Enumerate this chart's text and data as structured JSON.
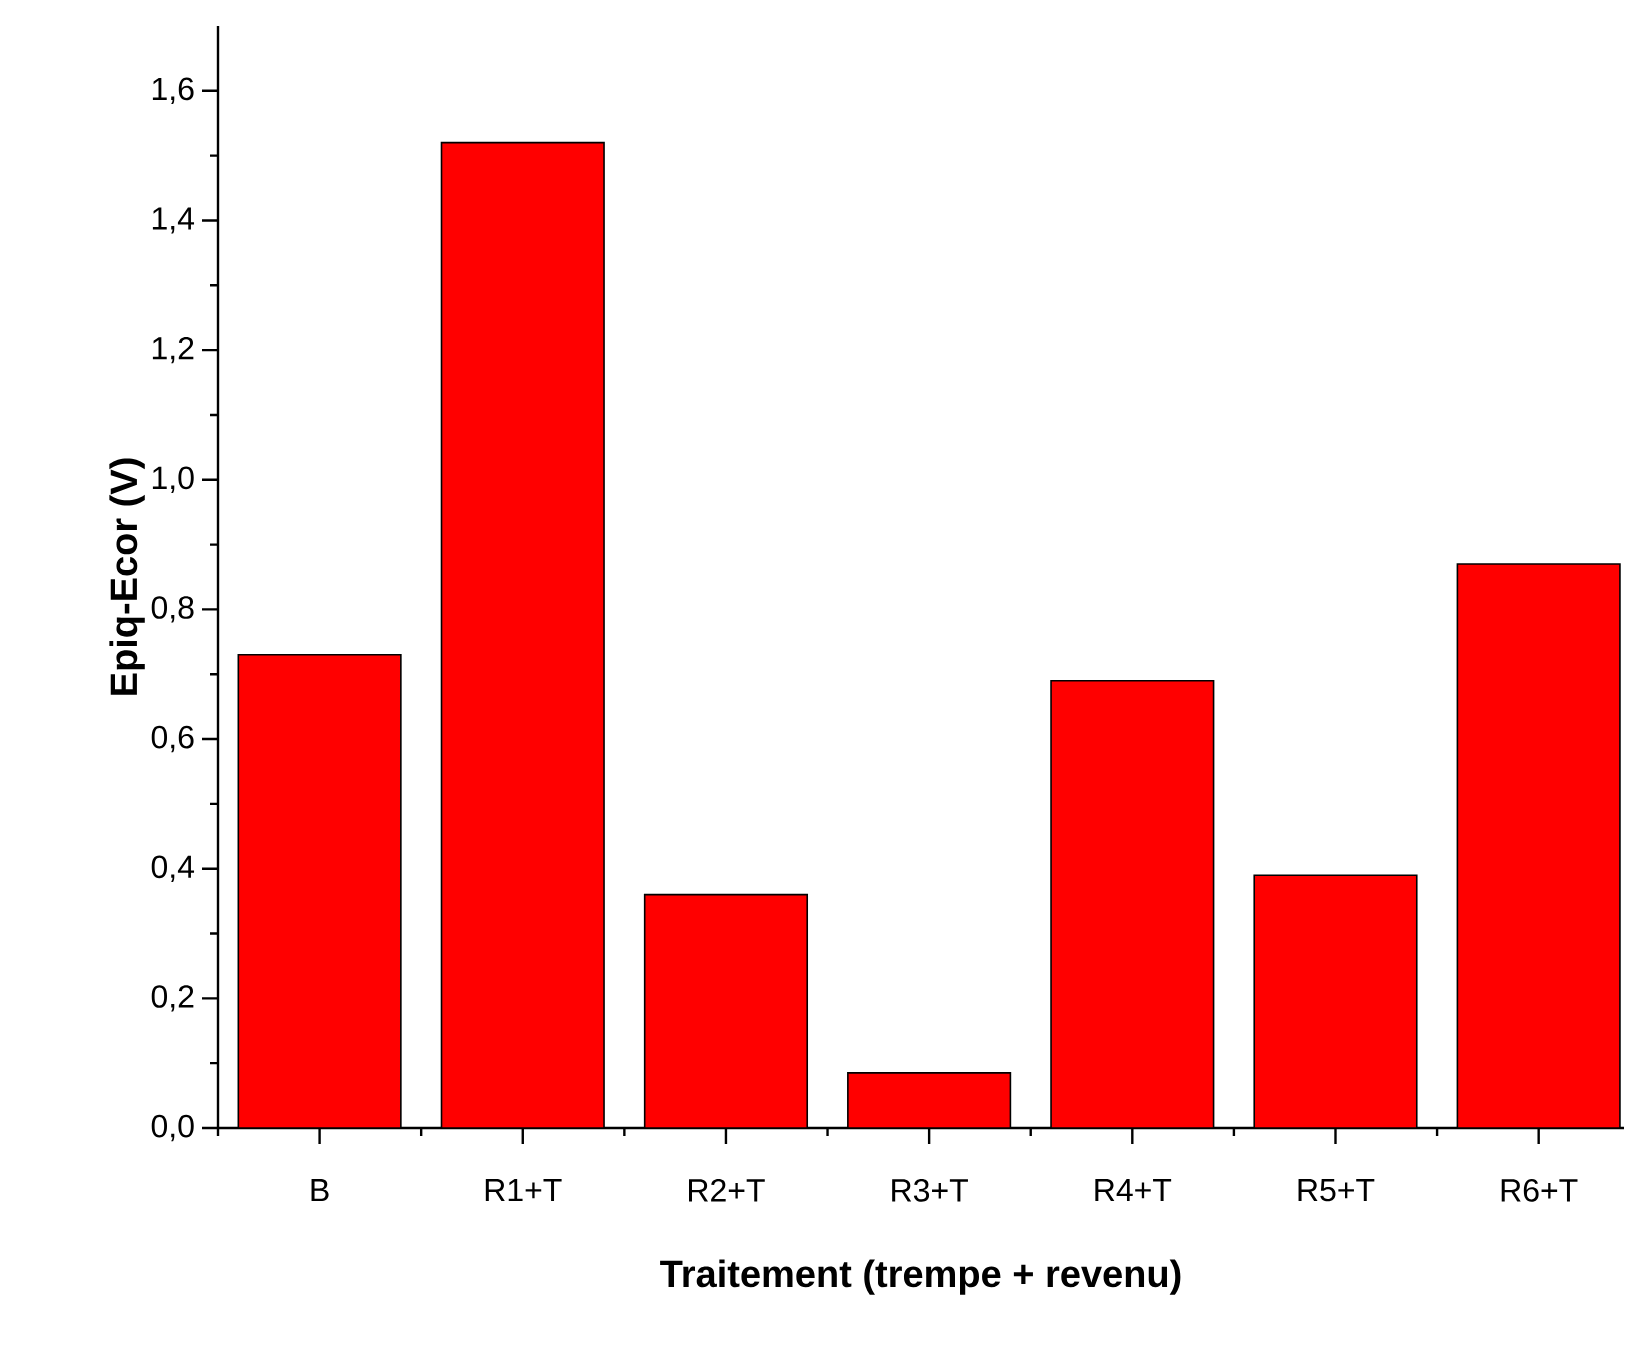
{
  "chart_data": {
    "type": "bar",
    "xlabel": "Traitement (trempe + revenu)",
    "ylabel": "Epiq-Ecor (V)",
    "categories": [
      "B",
      "R1+T",
      "R2+T",
      "R3+T",
      "R4+T",
      "R5+T",
      "R6+T"
    ],
    "values": [
      0.73,
      1.52,
      0.36,
      0.085,
      0.69,
      0.39,
      0.87
    ],
    "color": "#ff0000",
    "ylim": [
      0,
      1.7
    ],
    "yticks": [
      {
        "value": 0,
        "label": "0,0"
      },
      {
        "value": 0.2,
        "label": "0,2"
      },
      {
        "value": 0.4,
        "label": "0,4"
      },
      {
        "value": 0.6,
        "label": "0,6"
      },
      {
        "value": 0.8,
        "label": "0,8"
      },
      {
        "value": 1.0,
        "label": "1,0"
      },
      {
        "value": 1.2,
        "label": "1,2"
      },
      {
        "value": 1.4,
        "label": "1,4"
      },
      {
        "value": 1.6,
        "label": "1,6"
      }
    ],
    "grid": false
  }
}
